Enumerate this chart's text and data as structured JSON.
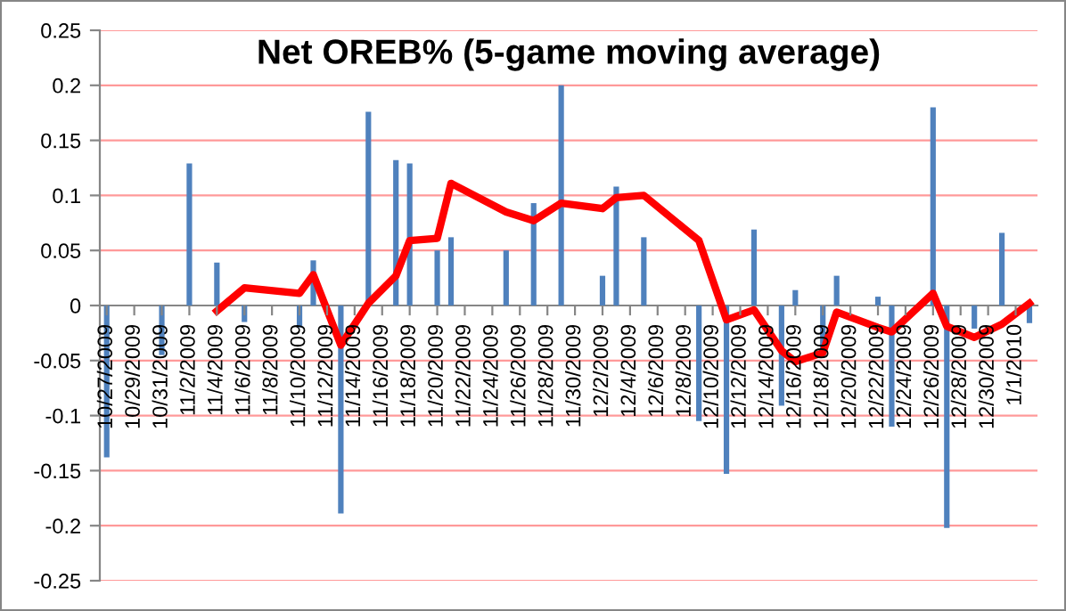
{
  "chart_data": {
    "type": "bar",
    "title": "Net OREB% (5-game moving average)",
    "series": [
      {
        "color": "#4f81bd",
        "x": [
          "2009-10-27",
          "2009-10-31",
          "2009-11-02",
          "2009-11-04",
          "2009-11-06",
          "2009-11-10",
          "2009-11-11",
          "2009-11-13",
          "2009-11-15",
          "2009-11-17",
          "2009-11-18",
          "2009-11-20",
          "2009-11-21",
          "2009-11-25",
          "2009-11-27",
          "2009-11-29",
          "2009-12-02",
          "2009-12-03",
          "2009-12-05",
          "2009-12-09",
          "2009-12-11",
          "2009-12-13",
          "2009-12-15",
          "2009-12-16",
          "2009-12-18",
          "2009-12-19",
          "2009-12-22",
          "2009-12-23",
          "2009-12-26",
          "2009-12-27",
          "2009-12-29",
          "2009-12-31",
          "2010-01-02"
        ],
        "values": [
          -0.138,
          -0.045,
          0.129,
          0.039,
          -0.015,
          -0.02,
          0.041,
          -0.189,
          0.176,
          0.132,
          0.129,
          0.05,
          0.062,
          0.05,
          0.093,
          0.2,
          0.027,
          0.108,
          0.062,
          -0.105,
          -0.153,
          0.069,
          -0.091,
          0.014,
          -0.04,
          0.027,
          0.008,
          -0.11,
          0.18,
          -0.202,
          -0.021,
          0.066,
          -0.016
        ]
      },
      {
        "type": "line",
        "color": "#ff0000",
        "x": [
          "2009-11-04",
          "2009-11-06",
          "2009-11-10",
          "2009-11-11",
          "2009-11-13",
          "2009-11-15",
          "2009-11-17",
          "2009-11-18",
          "2009-11-20",
          "2009-11-21",
          "2009-11-25",
          "2009-11-27",
          "2009-11-29",
          "2009-12-02",
          "2009-12-03",
          "2009-12-05",
          "2009-12-09",
          "2009-12-11",
          "2009-12-13",
          "2009-12-15",
          "2009-12-16",
          "2009-12-18",
          "2009-12-19",
          "2009-12-22",
          "2009-12-23",
          "2009-12-26",
          "2009-12-27",
          "2009-12-29",
          "2009-12-31",
          "2010-01-02"
        ],
        "values": [
          -0.005,
          0.016,
          0.011,
          0.028,
          -0.036,
          0.002,
          0.027,
          0.059,
          0.061,
          0.111,
          0.085,
          0.077,
          0.093,
          0.088,
          0.098,
          0.1,
          0.059,
          -0.013,
          -0.004,
          -0.041,
          -0.051,
          -0.043,
          -0.006,
          -0.02,
          -0.024,
          0.011,
          -0.019,
          -0.029,
          -0.017,
          0.002
        ]
      }
    ],
    "xlim": [
      "2009-10-26T12:00",
      "2010-01-02T14:00"
    ],
    "xticks": [
      {
        "value": "2009-10-27",
        "label": "10/27/2009"
      },
      {
        "value": "2009-10-29",
        "label": "10/29/2009"
      },
      {
        "value": "2009-10-31",
        "label": "10/31/2009"
      },
      {
        "value": "2009-11-02",
        "label": "11/2/2009"
      },
      {
        "value": "2009-11-04",
        "label": "11/4/2009"
      },
      {
        "value": "2009-11-06",
        "label": "11/6/2009"
      },
      {
        "value": "2009-11-08",
        "label": "11/8/2009"
      },
      {
        "value": "2009-11-10",
        "label": "11/10/2009"
      },
      {
        "value": "2009-11-12",
        "label": "11/12/2009"
      },
      {
        "value": "2009-11-14",
        "label": "11/14/2009"
      },
      {
        "value": "2009-11-16",
        "label": "11/16/2009"
      },
      {
        "value": "2009-11-18",
        "label": "11/18/2009"
      },
      {
        "value": "2009-11-20",
        "label": "11/20/2009"
      },
      {
        "value": "2009-11-22",
        "label": "11/22/2009"
      },
      {
        "value": "2009-11-24",
        "label": "11/24/2009"
      },
      {
        "value": "2009-11-26",
        "label": "11/26/2009"
      },
      {
        "value": "2009-11-28",
        "label": "11/28/2009"
      },
      {
        "value": "2009-11-30",
        "label": "11/30/2009"
      },
      {
        "value": "2009-12-02",
        "label": "12/2/2009"
      },
      {
        "value": "2009-12-04",
        "label": "12/4/2009"
      },
      {
        "value": "2009-12-06",
        "label": "12/6/2009"
      },
      {
        "value": "2009-12-08",
        "label": "12/8/2009"
      },
      {
        "value": "2009-12-10",
        "label": "12/10/2009"
      },
      {
        "value": "2009-12-12",
        "label": "12/12/2009"
      },
      {
        "value": "2009-12-14",
        "label": "12/14/2009"
      },
      {
        "value": "2009-12-16",
        "label": "12/16/2009"
      },
      {
        "value": "2009-12-18",
        "label": "12/18/2009"
      },
      {
        "value": "2009-12-20",
        "label": "12/20/2009"
      },
      {
        "value": "2009-12-22",
        "label": "12/22/2009"
      },
      {
        "value": "2009-12-24",
        "label": "12/24/2009"
      },
      {
        "value": "2009-12-26",
        "label": "12/26/2009"
      },
      {
        "value": "2009-12-28",
        "label": "12/28/2009"
      },
      {
        "value": "2009-12-30",
        "label": "12/30/2009"
      },
      {
        "value": "2010-01-01",
        "label": "1/1/2010"
      }
    ],
    "ylim": [
      -0.25,
      0.25
    ],
    "yticks": [
      -0.25,
      -0.2,
      -0.15,
      -0.1,
      -0.05,
      0,
      0.05,
      0.1,
      0.15,
      0.2,
      0.25
    ],
    "grid": "y",
    "legend": false,
    "marker": "none",
    "line_style": "solid"
  }
}
